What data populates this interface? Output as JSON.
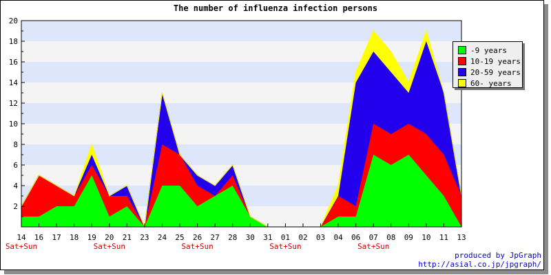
{
  "chart_data": {
    "type": "area",
    "stacked": true,
    "title": "The number of influenza infection persons",
    "categories": [
      "14",
      "16",
      "17",
      "18",
      "19",
      "20",
      "21",
      "23",
      "24",
      "25",
      "26",
      "27",
      "28",
      "30",
      "31",
      "01",
      "02",
      "03",
      "04",
      "06",
      "07",
      "08",
      "09",
      "10",
      "11",
      "13"
    ],
    "weekend_labels": [
      {
        "index": 0,
        "text": "Sat+Sun"
      },
      {
        "index": 5,
        "text": "Sat+Sun"
      },
      {
        "index": 10,
        "text": "Sat+Sun"
      },
      {
        "index": 15,
        "text": "Sat+Sun"
      },
      {
        "index": 20,
        "text": "Sat+Sun"
      }
    ],
    "ylim": [
      0,
      20
    ],
    "yticks": [
      2,
      4,
      6,
      8,
      10,
      12,
      14,
      16,
      18,
      20
    ],
    "series": [
      {
        "name": "-9 years",
        "color": "#00ff00",
        "values": [
          1,
          1,
          2,
          2,
          5,
          1,
          2,
          0,
          4,
          4,
          2,
          3,
          4,
          1,
          0,
          0,
          0,
          0,
          1,
          1,
          7,
          6,
          7,
          5,
          3,
          0
        ]
      },
      {
        "name": "10-19 years",
        "color": "#ff0000",
        "values": [
          1,
          4,
          2,
          1,
          1,
          2,
          1,
          0,
          4,
          3,
          2,
          0,
          1,
          0,
          0,
          0,
          0,
          0,
          2,
          1,
          3,
          3,
          3,
          4,
          4,
          3
        ]
      },
      {
        "name": "20-59 years",
        "color": "#2200ee",
        "values": [
          0,
          0,
          0,
          0,
          1,
          0,
          1,
          0,
          5,
          0,
          1,
          1,
          1,
          0,
          0,
          0,
          0,
          0,
          0,
          12,
          7,
          6,
          3,
          9,
          6,
          0
        ]
      },
      {
        "name": "60- years",
        "color": "#ffff00",
        "values": [
          0,
          0,
          0,
          0,
          1,
          0,
          0,
          0,
          0,
          0,
          0,
          0,
          0,
          0,
          0,
          0,
          0,
          0,
          1,
          1,
          2,
          2,
          1,
          1,
          0,
          0
        ]
      }
    ],
    "legend_position": "top-right",
    "band_colors": [
      "#dde6fa",
      "#f4f4f4"
    ]
  },
  "credits": {
    "line1": "produced by JpGraph",
    "line2": "http://asial.co.jp/jpgraph/"
  }
}
